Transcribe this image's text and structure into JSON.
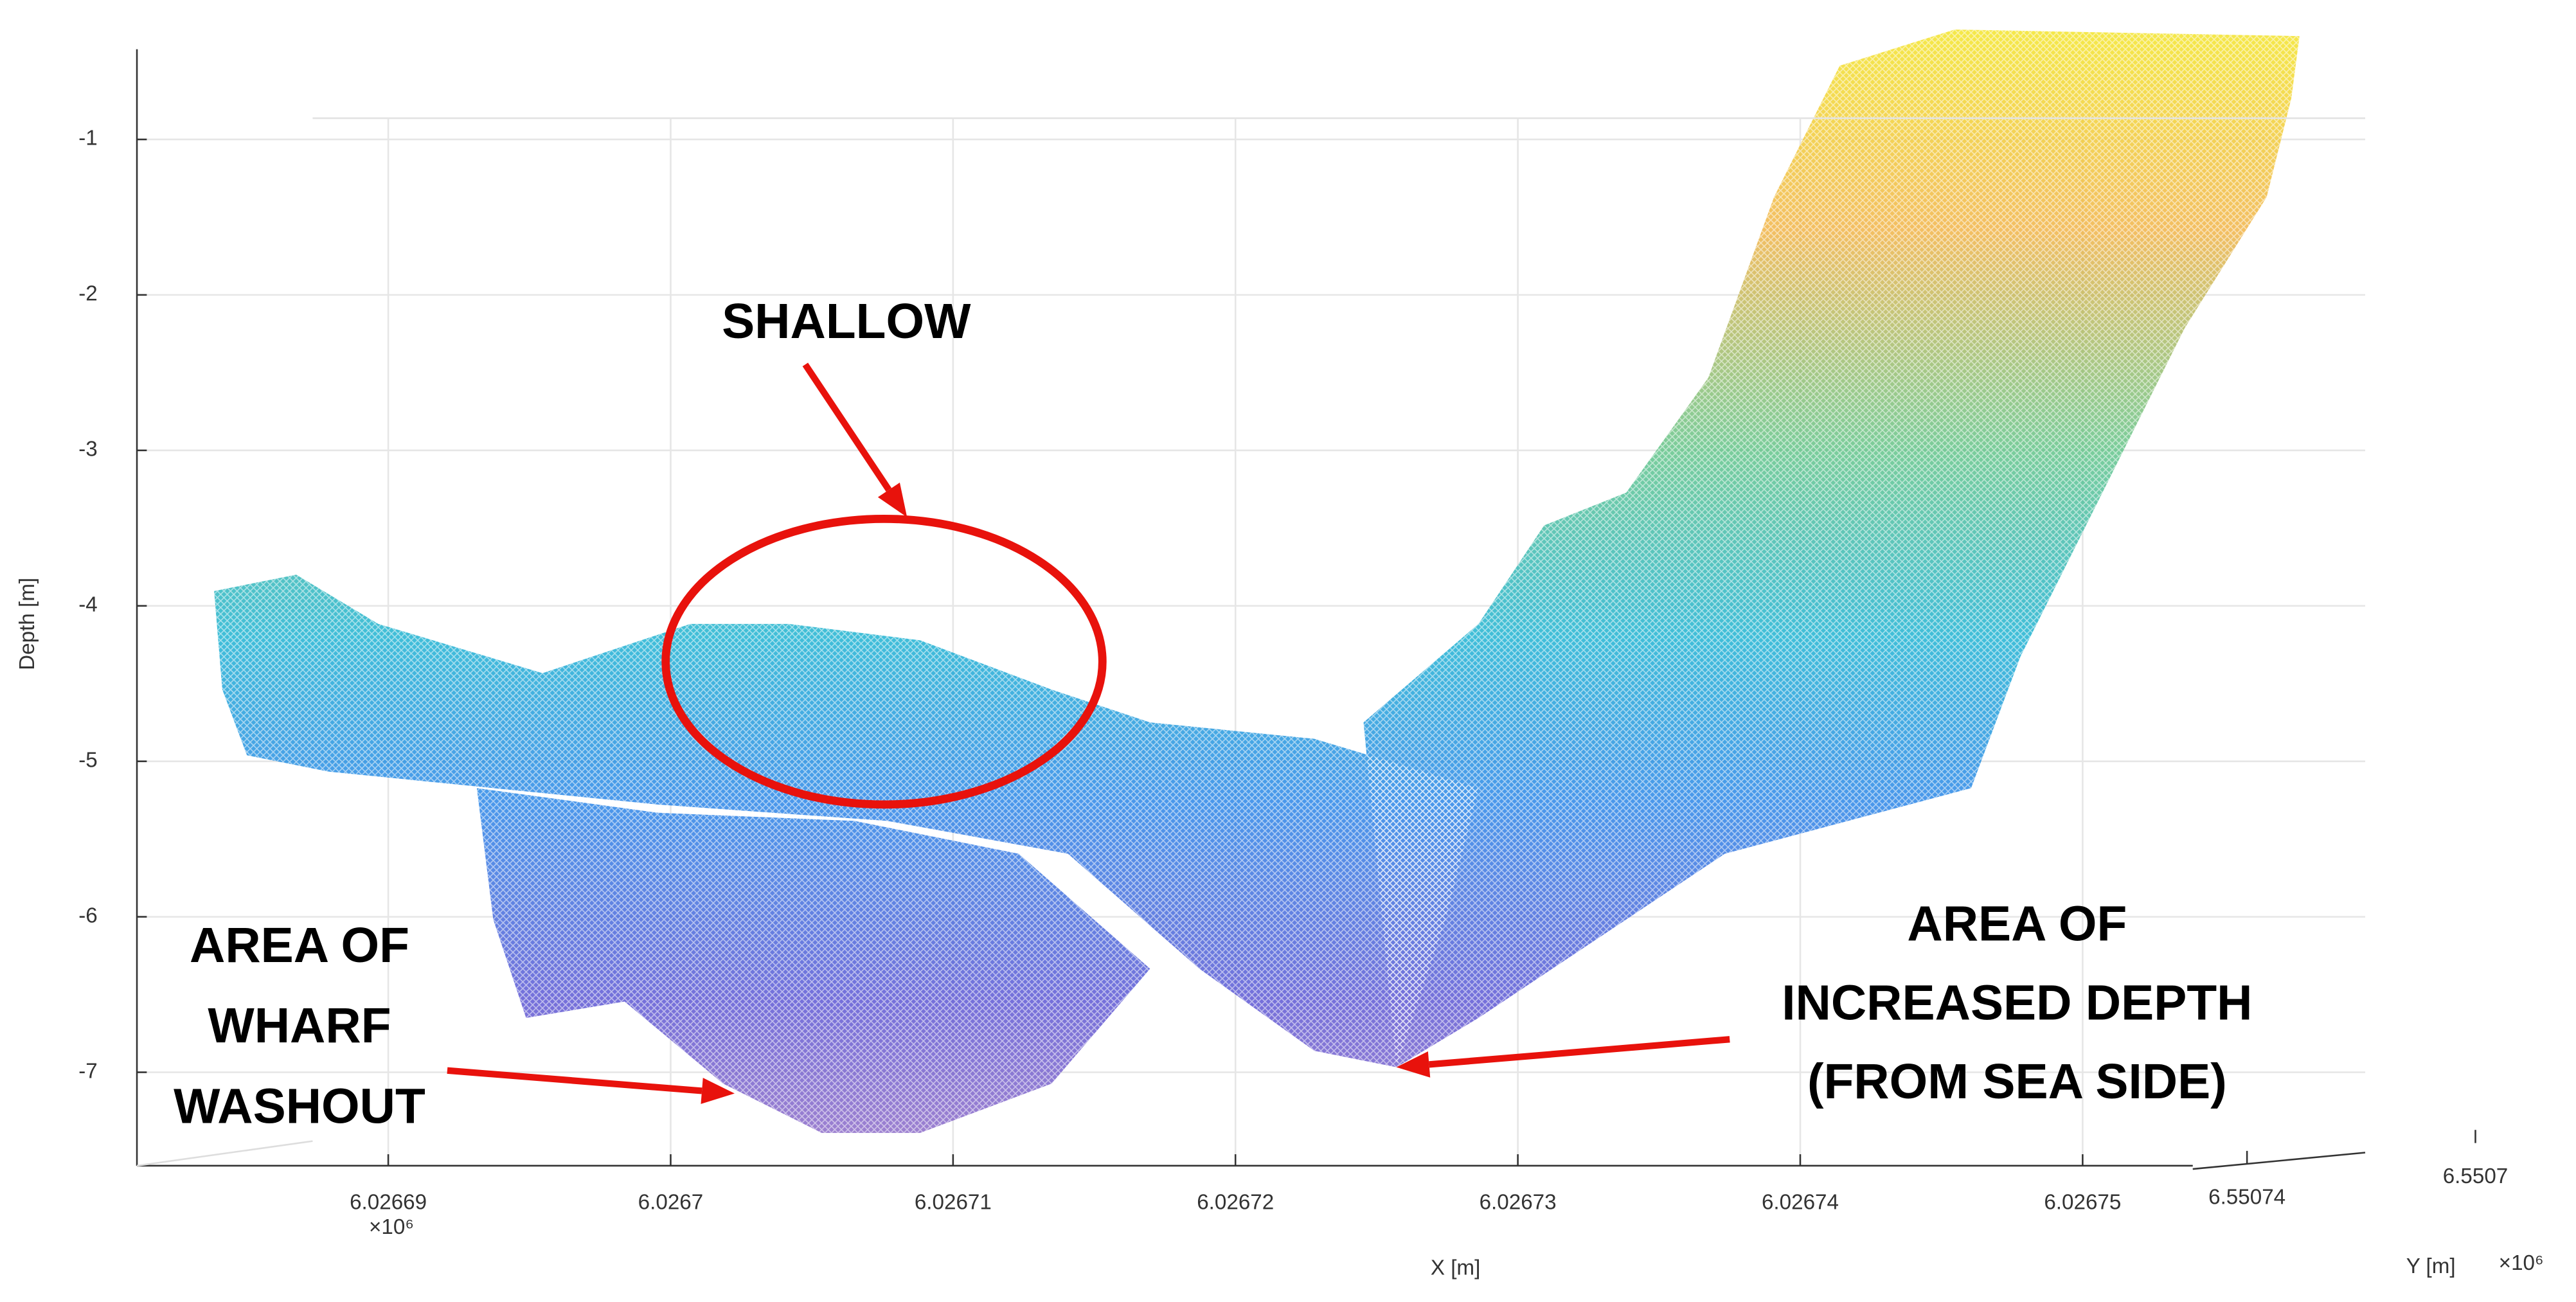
{
  "chart_data": {
    "type": "surface3d",
    "xlabel": "X [m]",
    "ylabel": "Y [m]",
    "zlabel": "Depth [m]",
    "x_multiplier": "×10⁶",
    "y_multiplier": "×10⁶",
    "xlim": [
      6026681.1,
      6026753.9
    ],
    "xticks": [
      {
        "value": 6026690,
        "label": "6.02669"
      },
      {
        "value": 6026700,
        "label": "6.0267"
      },
      {
        "value": 6026710,
        "label": "6.02671"
      },
      {
        "value": 6026720,
        "label": "6.02672"
      },
      {
        "value": 6026730,
        "label": "6.02673"
      },
      {
        "value": 6026740,
        "label": "6.02674"
      },
      {
        "value": 6026750,
        "label": "6.02675"
      }
    ],
    "ylim": [
      6550749.5,
      6550696.3
    ],
    "yticks": [
      {
        "value": 6550740,
        "label": "6.55074"
      },
      {
        "value": 6550700,
        "label": "6.5507"
      }
    ],
    "zlim": [
      -7.58,
      -0.42
    ],
    "zticks": [
      -1,
      -2,
      -3,
      -4,
      -5,
      -6,
      -7
    ],
    "grid": true,
    "annotation_color": "#e8120c",
    "annotations": [
      {
        "text": [
          "SHALLOW"
        ]
      },
      {
        "text": [
          "AREA OF",
          "WHARF",
          "WASHOUT"
        ]
      },
      {
        "text": [
          "AREA OF",
          "INCREASED DEPTH",
          "(FROM SEA SIDE)"
        ]
      }
    ]
  }
}
